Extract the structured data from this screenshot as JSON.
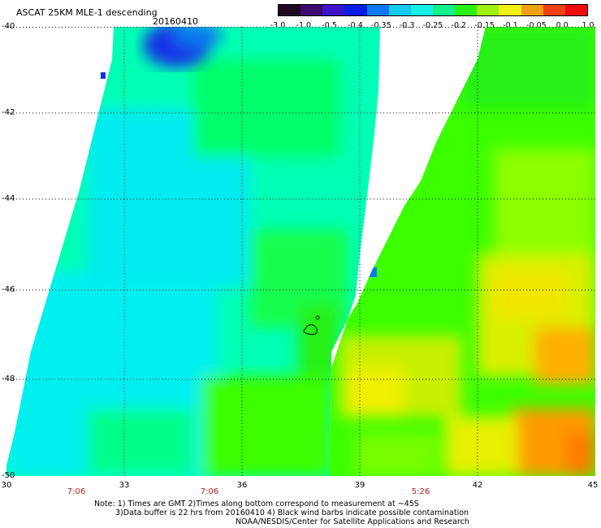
{
  "header": {
    "title": "ASCAT 25KM MLE-1 descending",
    "date": "20160410"
  },
  "colorbar": {
    "labels": [
      "-3.0",
      "-1.0",
      "-0.5",
      "-0.4",
      "-0.35",
      "-0.3",
      "-0.25",
      "-0.2",
      "-0.15",
      "-0.1",
      "-0.05",
      "0.0",
      "1.0"
    ],
    "colors": [
      "#1e0a1e",
      "#3a0a6e",
      "#3c14c8",
      "#0a1ee8",
      "#0a78f0",
      "#14c8f0",
      "#14f0e6",
      "#14f08c",
      "#28f014",
      "#a0f014",
      "#f0f014",
      "#f0a014",
      "#f04014",
      "#f00a0a"
    ]
  },
  "map": {
    "x_ticks": [
      "30",
      "33",
      "36",
      "39",
      "42",
      "45"
    ],
    "y_ticks": [
      "-40",
      "-42",
      "-44",
      "-46",
      "-48",
      "-50"
    ],
    "times": [
      "7:06",
      "7:06",
      "5:26"
    ],
    "colors": {
      "cyan": "#00f0f0",
      "aqua": "#00ffd0",
      "green": "#00ff6a",
      "lime": "#3cff00",
      "yellowgreen": "#a8ff00",
      "yellow": "#f0f000",
      "orange": "#ffa000",
      "darkorange": "#ff8800",
      "blue": "#1230e6",
      "midblue": "#0a78f0"
    }
  },
  "notes": {
    "line1": "Note: 1) Times are GMT 2)Times along bottom correspond to measurement at ~45S",
    "line2": "3)Data buffer is 22 hrs from 20160410 4) Black wind barbs indicate possible contamination",
    "line3": "NOAA/NESDIS/Center for Satellite Applications and Research"
  }
}
